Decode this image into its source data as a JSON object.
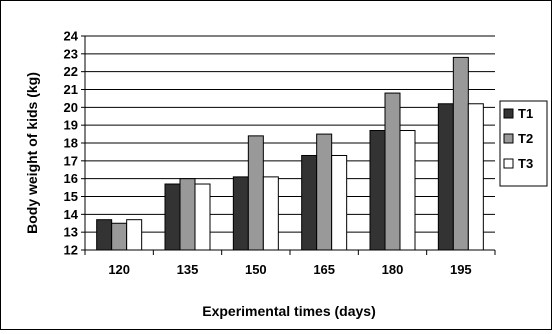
{
  "chart_data": {
    "type": "bar",
    "title": "",
    "xlabel": "Experimental times (days)",
    "ylabel": "Body weight of kids (kg)",
    "categories": [
      "120",
      "135",
      "150",
      "165",
      "180",
      "195"
    ],
    "ylim": [
      12,
      24
    ],
    "yticks": [
      "12",
      "13",
      "14",
      "15",
      "16",
      "17",
      "18",
      "19",
      "20",
      "21",
      "22",
      "23",
      "24"
    ],
    "grid": true,
    "legend_position": "right",
    "series": [
      {
        "name": "T1",
        "color": "#333333",
        "values": [
          13.7,
          15.7,
          16.1,
          17.3,
          18.7,
          20.2
        ]
      },
      {
        "name": "T2",
        "color": "#999999",
        "values": [
          13.5,
          16.0,
          18.4,
          18.5,
          20.8,
          22.8
        ]
      },
      {
        "name": "T3",
        "color": "#ffffff",
        "values": [
          13.7,
          15.7,
          16.1,
          17.3,
          18.7,
          20.2
        ]
      }
    ]
  }
}
